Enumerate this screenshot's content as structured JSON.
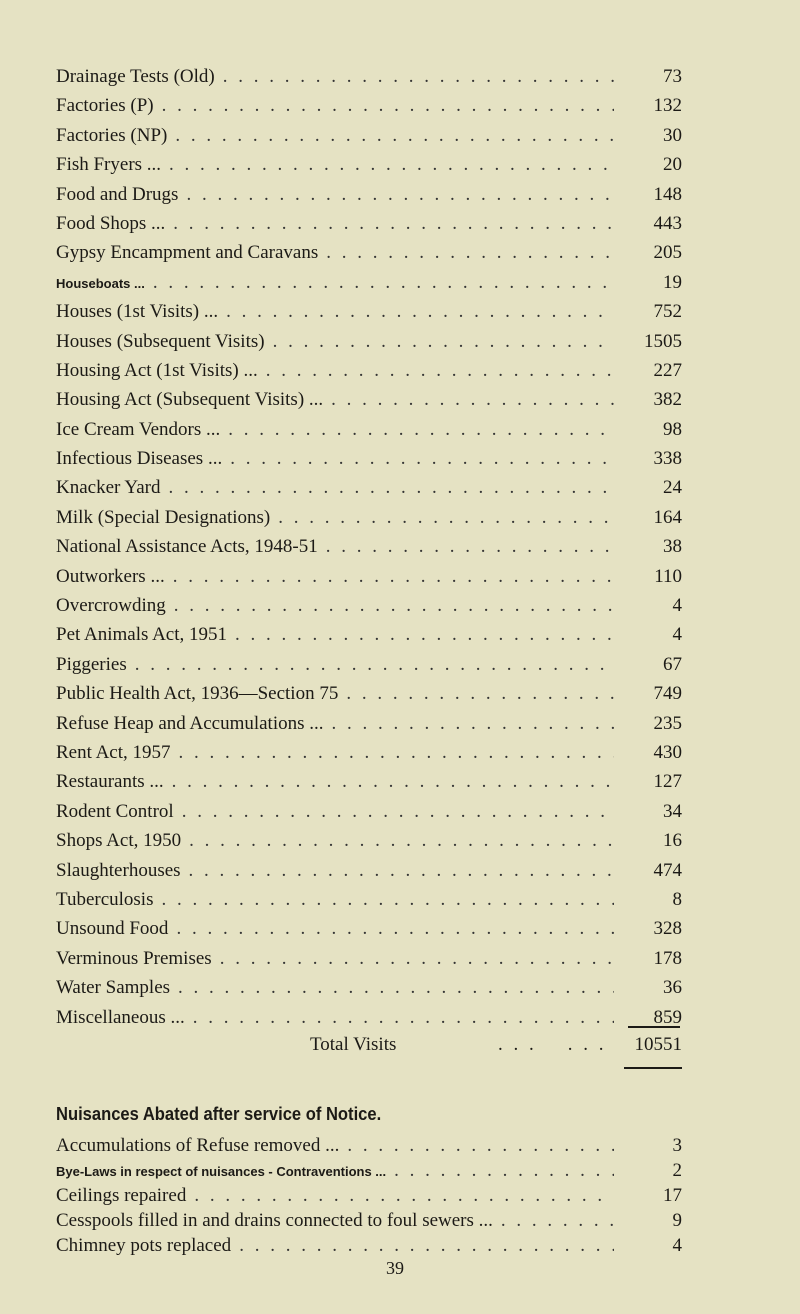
{
  "visits": [
    {
      "label": "Drainage Tests (Old)",
      "value": "73"
    },
    {
      "label": "Factories (P)",
      "value": "132"
    },
    {
      "label": "Factories (NP)",
      "value": "30"
    },
    {
      "label": "Fish Fryers ...",
      "value": "20"
    },
    {
      "label": "Food and Drugs",
      "value": "148"
    },
    {
      "label": "Food Shops ...",
      "value": "443"
    },
    {
      "label": "Gypsy Encampment and Caravans",
      "value": "205"
    },
    {
      "label": "Houseboats ...",
      "value": "19",
      "small": true
    },
    {
      "label": "Houses (1st Visits) ...",
      "value": "752"
    },
    {
      "label": "Houses (Subsequent Visits)",
      "value": "1505"
    },
    {
      "label": "Housing Act (1st Visits) ...",
      "value": "227"
    },
    {
      "label": "Housing Act (Subsequent Visits) ...",
      "value": "382"
    },
    {
      "label": "Ice Cream Vendors ...",
      "value": "98"
    },
    {
      "label": "Infectious Diseases ...",
      "value": "338"
    },
    {
      "label": "Knacker Yard",
      "value": "24"
    },
    {
      "label": "Milk (Special Designations)",
      "value": "164"
    },
    {
      "label": "National Assistance Acts, 1948-51",
      "value": "38"
    },
    {
      "label": "Outworkers ...",
      "value": "110"
    },
    {
      "label": "Overcrowding",
      "value": "4"
    },
    {
      "label": "Pet Animals Act, 1951",
      "value": "4"
    },
    {
      "label": "Piggeries",
      "value": "67"
    },
    {
      "label": "Public Health Act, 1936—Section 75",
      "value": "749"
    },
    {
      "label": "Refuse Heap and Accumulations ...",
      "value": "235"
    },
    {
      "label": "Rent Act, 1957",
      "value": "430"
    },
    {
      "label": "Restaurants ...",
      "value": "127"
    },
    {
      "label": "Rodent Control",
      "value": "34"
    },
    {
      "label": "Shops Act, 1950",
      "value": "16"
    },
    {
      "label": "Slaughterhouses",
      "value": "474"
    },
    {
      "label": "Tuberculosis",
      "value": "8"
    },
    {
      "label": "Unsound Food",
      "value": "328"
    },
    {
      "label": "Verminous Premises",
      "value": "178"
    },
    {
      "label": "Water Samples",
      "value": "36"
    },
    {
      "label": "Miscellaneous ...",
      "value": "859"
    }
  ],
  "total": {
    "label": "Total Visits",
    "value": "10551"
  },
  "nuisances": {
    "heading": "Nuisances Abated after service of Notice.",
    "items": [
      {
        "label": "Accumulations of Refuse removed ...",
        "value": "3"
      },
      {
        "label": "Bye-Laws in respect of nuisances - Contraventions ...",
        "value": "2",
        "small": true
      },
      {
        "label": "Ceilings repaired",
        "value": "17"
      },
      {
        "label": "Cesspools filled in and drains connected to foul sewers ...",
        "value": "9"
      },
      {
        "label": "Chimney pots replaced",
        "value": "4"
      }
    ]
  },
  "page_number": "39"
}
